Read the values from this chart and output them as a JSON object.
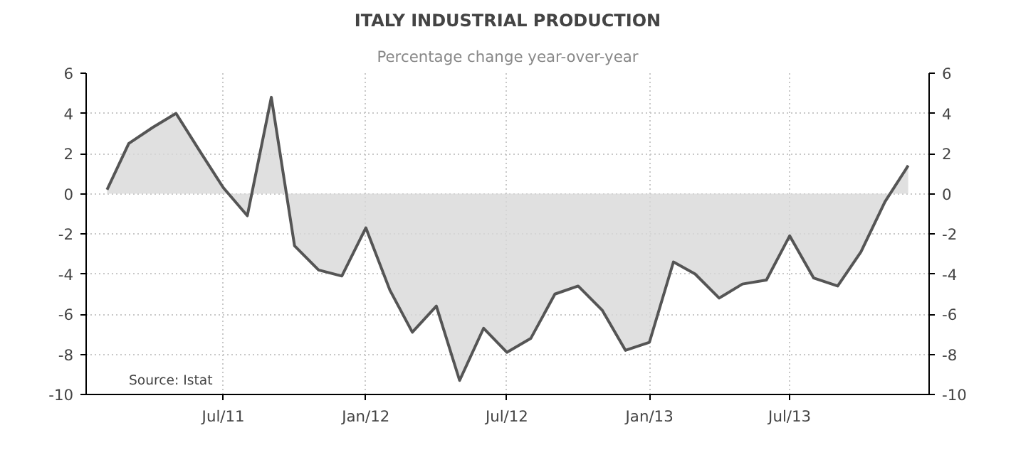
{
  "chart_data": {
    "type": "area",
    "title": "ITALY INDUSTRIAL PRODUCTION",
    "subtitle": "Percentage change year-over-year",
    "x": [
      "2011-02",
      "2011-03",
      "2011-04",
      "2011-05",
      "2011-06",
      "2011-07",
      "2011-08",
      "2011-09",
      "2011-10",
      "2011-11",
      "2011-12",
      "2012-01",
      "2012-02",
      "2012-03",
      "2012-04",
      "2012-05",
      "2012-06",
      "2012-07",
      "2012-08",
      "2012-09",
      "2012-10",
      "2012-11",
      "2012-12",
      "2013-01",
      "2013-02",
      "2013-03",
      "2013-04",
      "2013-05",
      "2013-06",
      "2013-07",
      "2013-08",
      "2013-09",
      "2013-10",
      "2013-11",
      "2013-12"
    ],
    "series": [
      {
        "color": "#555555",
        "values": [
          0.2,
          2.5,
          3.3,
          4.0,
          2.1,
          0.3,
          -1.1,
          4.8,
          -2.6,
          -3.8,
          -4.1,
          -1.7,
          -4.8,
          -6.9,
          -5.6,
          -9.3,
          -6.7,
          -7.9,
          -7.2,
          -5.0,
          -4.6,
          -5.8,
          -7.8,
          -7.4,
          -3.4,
          -4.0,
          -5.2,
          -4.5,
          -4.3,
          -2.1,
          -4.2,
          -4.6,
          -2.9,
          -0.4,
          1.4
        ]
      }
    ],
    "xlim": [
      "2011-01-05",
      "2013-12-28"
    ],
    "xticks": [
      {
        "value": "2011-07",
        "label": "Jul/11"
      },
      {
        "value": "2012-01",
        "label": "Jan/12"
      },
      {
        "value": "2012-07",
        "label": "Jul/12"
      },
      {
        "value": "2013-01",
        "label": "Jan/13"
      },
      {
        "value": "2013-07",
        "label": "Jul/13"
      }
    ],
    "ylim": [
      -10,
      6
    ],
    "yticks": [
      -10,
      -8,
      -6,
      -4,
      -2,
      0,
      2,
      4,
      6
    ],
    "y2lim": [
      -10,
      6
    ],
    "y2ticks": [
      -10,
      -8,
      -6,
      -4,
      -2,
      0,
      2,
      4,
      6
    ],
    "grid": true,
    "annotations": [
      "Source: Istat"
    ]
  }
}
